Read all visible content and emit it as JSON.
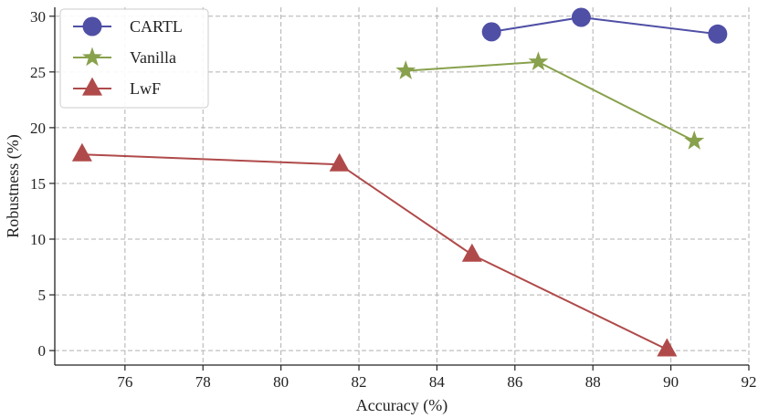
{
  "chart_data": {
    "type": "line",
    "xlabel": "Accuracy (%)",
    "ylabel": "Robustness (%)",
    "xlim": [
      74.2,
      92.0
    ],
    "ylim": [
      -1.3,
      30.8
    ],
    "xticks": [
      76,
      78,
      80,
      82,
      84,
      86,
      88,
      90,
      92
    ],
    "yticks": [
      0,
      5,
      10,
      15,
      20,
      25,
      30
    ],
    "grid": true,
    "legend_position": "top-left",
    "series": [
      {
        "name": "CARTL",
        "color": "#4f4fa6",
        "marker": "circle",
        "points": [
          [
            85.4,
            28.6
          ],
          [
            87.7,
            29.9
          ],
          [
            91.2,
            28.4
          ]
        ]
      },
      {
        "name": "Vanilla",
        "color": "#88a14c",
        "marker": "star",
        "points": [
          [
            83.2,
            25.1
          ],
          [
            86.6,
            25.9
          ],
          [
            90.6,
            18.8
          ]
        ]
      },
      {
        "name": "LwF",
        "color": "#b04a4a",
        "marker": "triangle",
        "points": [
          [
            74.9,
            17.6
          ],
          [
            81.5,
            16.7
          ],
          [
            84.9,
            8.6
          ],
          [
            89.9,
            0.1
          ]
        ]
      }
    ]
  }
}
